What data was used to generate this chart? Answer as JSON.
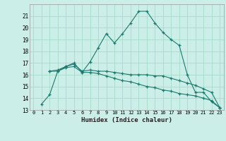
{
  "xlabel": "Humidex (Indice chaleur)",
  "background_color": "#cceee8",
  "grid_color": "#aaddcc",
  "line_color": "#1a7a6e",
  "xlim": [
    -0.5,
    23.5
  ],
  "ylim": [
    13,
    22
  ],
  "yticks": [
    13,
    14,
    15,
    16,
    17,
    18,
    19,
    20,
    21
  ],
  "xticks": [
    0,
    1,
    2,
    3,
    4,
    5,
    6,
    7,
    8,
    9,
    10,
    11,
    12,
    13,
    14,
    15,
    16,
    17,
    18,
    19,
    20,
    21,
    22,
    23
  ],
  "line1_x": [
    1,
    2,
    3,
    4,
    5,
    6,
    7,
    8,
    9,
    10,
    11,
    12,
    13,
    14,
    15,
    16,
    17,
    18,
    19,
    20,
    21,
    22,
    23
  ],
  "line1_y": [
    13.5,
    14.3,
    16.3,
    16.7,
    17.0,
    16.2,
    17.1,
    18.3,
    19.5,
    18.7,
    19.5,
    20.4,
    21.4,
    21.4,
    20.4,
    19.6,
    19.0,
    18.5,
    16.0,
    14.5,
    14.5,
    13.7,
    13.2
  ],
  "line2_x": [
    2,
    3,
    4,
    5,
    6,
    7,
    8,
    9,
    10,
    11,
    12,
    13,
    14,
    15,
    16,
    17,
    18,
    19,
    20,
    21,
    22,
    23
  ],
  "line2_y": [
    16.3,
    16.4,
    16.7,
    16.9,
    16.3,
    16.4,
    16.3,
    16.3,
    16.2,
    16.1,
    16.0,
    16.0,
    16.0,
    15.9,
    15.9,
    15.7,
    15.5,
    15.3,
    15.1,
    14.8,
    14.5,
    13.2
  ],
  "line3_x": [
    2,
    3,
    4,
    5,
    6,
    7,
    8,
    9,
    10,
    11,
    12,
    13,
    14,
    15,
    16,
    17,
    18,
    19,
    20,
    21,
    22,
    23
  ],
  "line3_y": [
    16.3,
    16.3,
    16.6,
    16.7,
    16.2,
    16.2,
    16.1,
    15.9,
    15.7,
    15.5,
    15.4,
    15.2,
    15.0,
    14.9,
    14.7,
    14.6,
    14.4,
    14.3,
    14.2,
    14.0,
    13.8,
    13.2
  ]
}
